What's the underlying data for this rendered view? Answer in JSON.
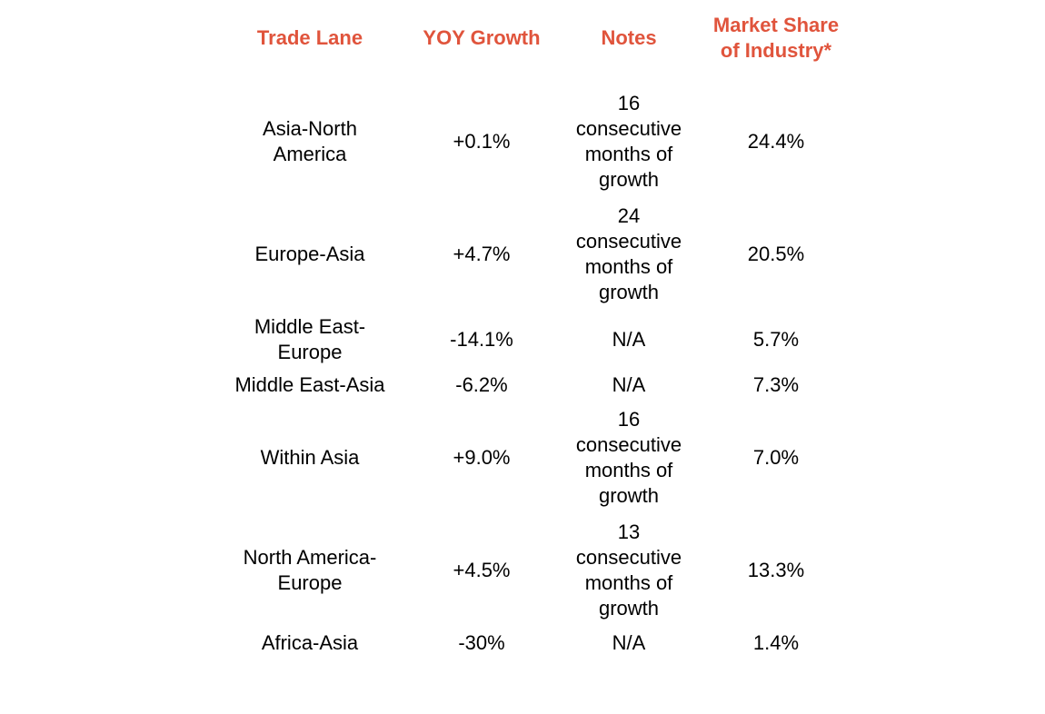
{
  "accent_color": "#E0543C",
  "table": {
    "headers": [
      "Trade Lane",
      "YOY Growth",
      "Notes",
      "Market Share of Industry*"
    ],
    "rows": [
      {
        "lane": "Asia-North America",
        "growth": "+0.1%",
        "notes": "16 consecutive months of growth",
        "share": "24.4%"
      },
      {
        "lane": "Europe-Asia",
        "growth": "+4.7%",
        "notes": "24 consecutive months of growth",
        "share": "20.5%"
      },
      {
        "lane": "Middle East-Europe",
        "growth": "-14.1%",
        "notes": "N/A",
        "share": "5.7%"
      },
      {
        "lane": "Middle East-Asia",
        "growth": "-6.2%",
        "notes": "N/A",
        "share": "7.3%"
      },
      {
        "lane": "Within Asia",
        "growth": "+9.0%",
        "notes": "16 consecutive months of growth",
        "share": "7.0%"
      },
      {
        "lane": "North America-Europe",
        "growth": "+4.5%",
        "notes": "13 consecutive months of growth",
        "share": "13.3%"
      },
      {
        "lane": "Africa-Asia",
        "growth": "-30%",
        "notes": "N/A",
        "share": "1.4%"
      }
    ]
  }
}
